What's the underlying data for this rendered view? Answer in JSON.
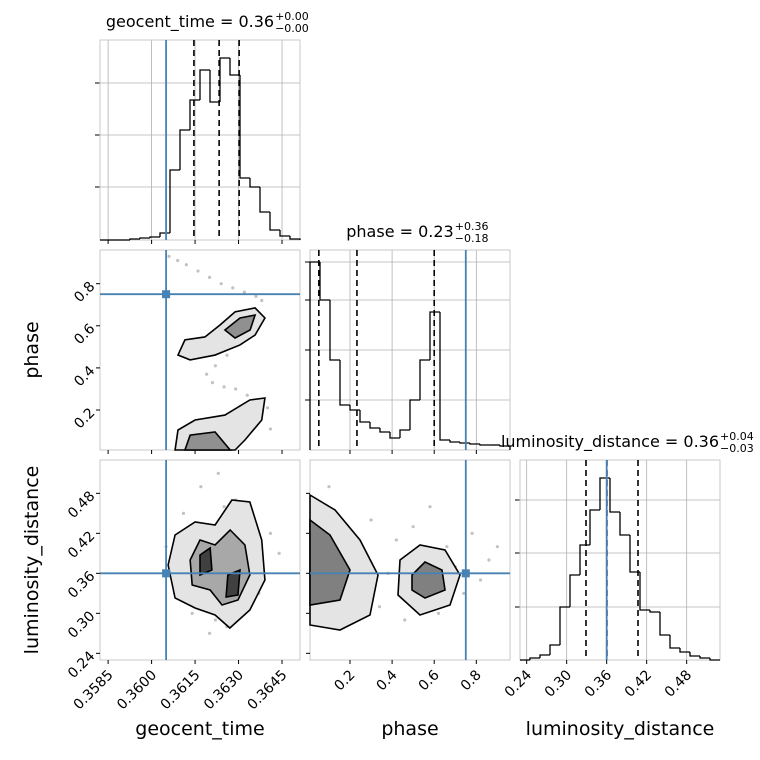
{
  "chart_data": {
    "type": "corner",
    "truth_color": "#4682b4",
    "line_color": "#000000",
    "grid": true,
    "parameters": [
      {
        "name": "geocent_time",
        "title": "geocent_time = 0.36",
        "title_upper": "+0.00",
        "title_lower": "−0.00",
        "lim": [
          0.35822,
          0.36512
        ],
        "ticks": [
          0.3585,
          {
            "value": 0.36,
            "label": "0.3600"
          },
          0.3615,
          {
            "value": 0.363,
            "label": "0.3630"
          },
          0.3645
        ],
        "truth": 0.3605,
        "quantiles": [
          0.36146,
          0.36233,
          0.36302
        ],
        "bins": [
          0.35822,
          0.358565,
          0.35891,
          0.359255,
          0.3596,
          0.359945,
          0.36029,
          0.360635,
          0.36098,
          0.361325,
          0.36167,
          0.362015,
          0.36236,
          0.362705,
          0.36305,
          0.363395,
          0.36374,
          0.364085,
          0.36443,
          0.364775,
          0.36512
        ],
        "counts": [
          0,
          0,
          0,
          1,
          2,
          3,
          7,
          70,
          110,
          140,
          170,
          138,
          182,
          165,
          62,
          53,
          28,
          10,
          4,
          1
        ],
        "count_lim": [
          0,
          200
        ],
        "count_ticks": [
          53,
          105,
          157
        ]
      },
      {
        "name": "phase",
        "title": "phase = 0.23",
        "title_upper": "+0.36",
        "title_lower": "−0.18",
        "lim": [
          0.01,
          0.96
        ],
        "ticks": [
          0.2,
          0.4,
          0.6,
          0.8
        ],
        "truth": 0.75,
        "quantiles": [
          0.052,
          0.233,
          0.6
        ],
        "bins": [
          0.01,
          0.0575,
          0.105,
          0.1525,
          0.2,
          0.2475,
          0.295,
          0.3425,
          0.39,
          0.4375,
          0.485,
          0.5325,
          0.58,
          0.6275,
          0.675,
          0.7225,
          0.77,
          0.8175,
          0.865,
          0.9125,
          0.96
        ],
        "counts": [
          188,
          150,
          90,
          45,
          40,
          28,
          22,
          18,
          12,
          20,
          50,
          90,
          138,
          10,
          8,
          7,
          6,
          5,
          5,
          4
        ],
        "count_lim": [
          0,
          200
        ],
        "count_ticks": [
          50,
          100,
          150,
          188
        ]
      },
      {
        "name": "luminosity_distance",
        "title": "luminosity_distance = 0.36",
        "title_upper": "+0.04",
        "title_lower": "−0.03",
        "lim": [
          0.23,
          0.53
        ],
        "ticks": [
          0.24,
          {
            "value": 0.3,
            "label": "0.30"
          },
          0.36,
          0.42,
          0.48
        ],
        "truth": 0.36,
        "quantiles": [
          0.329,
          0.3604,
          0.407
        ],
        "bins": [
          0.23,
          0.245,
          0.26,
          0.275,
          0.29,
          0.305,
          0.32,
          0.335,
          0.35,
          0.365,
          0.38,
          0.395,
          0.41,
          0.425,
          0.44,
          0.455,
          0.47,
          0.485,
          0.5,
          0.515,
          0.53
        ],
        "counts": [
          0,
          2,
          5,
          15,
          53,
          85,
          115,
          150,
          182,
          148,
          125,
          88,
          50,
          48,
          25,
          12,
          8,
          4,
          2,
          0
        ],
        "count_lim": [
          0,
          200
        ],
        "count_ticks": [
          53,
          107,
          160
        ]
      }
    ],
    "pairs": [
      {
        "points": {
          "x": [
            0.3606,
            0.3609,
            0.3612,
            0.3616,
            0.362,
            0.3624,
            0.3628,
            0.3632,
            0.3636,
            0.3638,
            0.3635,
            0.363,
            0.3626,
            0.3622,
            0.3619,
            0.3621,
            0.3625,
            0.3629,
            0.3633,
            0.3637,
            0.364,
            0.3616,
            0.3628,
            0.3641
          ],
          "y": [
            0.93,
            0.91,
            0.89,
            0.86,
            0.83,
            0.8,
            0.78,
            0.76,
            0.74,
            0.72,
            0.68,
            0.52,
            0.46,
            0.41,
            0.37,
            0.33,
            0.31,
            0.3,
            0.27,
            0.24,
            0.21,
            0.15,
            0.06,
            0.11
          ]
        },
        "contours": [
          {
            "fill": "#e4e4e4",
            "x": [
              0.36091,
              0.36115,
              0.36184,
              0.36236,
              0.36288,
              0.36357,
              0.36391,
              0.36357,
              0.36305,
              0.36219,
              0.36133
            ],
            "y": [
              0.461,
              0.533,
              0.547,
              0.604,
              0.666,
              0.685,
              0.637,
              0.556,
              0.509,
              0.461,
              0.438
            ]
          },
          {
            "fill": "#909090",
            "x": [
              0.36253,
              0.36305,
              0.36357,
              0.3634,
              0.36288
            ],
            "y": [
              0.58,
              0.637,
              0.651,
              0.58,
              0.542
            ]
          },
          {
            "fill": "#e4e4e4",
            "x": [
              0.36081,
              0.36091,
              0.3615,
              0.36253,
              0.36339,
              0.36391,
              0.3638,
              0.36322,
              0.36288
            ],
            "y": [
              0.01,
              0.105,
              0.1525,
              0.176,
              0.2475,
              0.257,
              0.1525,
              0.0575,
              0.01
            ]
          },
          {
            "fill": "#909090",
            "x": [
              0.36115,
              0.36133,
              0.36219,
              0.36271
            ],
            "y": [
              0.01,
              0.081,
              0.0955,
              0.01
            ]
          }
        ]
      },
      {
        "points": {
          "x": [
            0.3605,
            0.3608,
            0.3611,
            0.3614,
            0.3617,
            0.362,
            0.3623,
            0.3626,
            0.3629,
            0.3632,
            0.3635,
            0.3638,
            0.3641,
            0.3644,
            0.3613,
            0.3619,
            0.3625,
            0.3631,
            0.3637,
            0.3622,
            0.3628,
            0.3616,
            0.3634,
            0.361
          ],
          "y": [
            0.4,
            0.33,
            0.45,
            0.3,
            0.49,
            0.27,
            0.51,
            0.28,
            0.47,
            0.31,
            0.44,
            0.36,
            0.42,
            0.39,
            0.38,
            0.43,
            0.46,
            0.4,
            0.33,
            0.29,
            0.35,
            0.41,
            0.37,
            0.36
          ]
        },
        "contours": [
          {
            "fill": "#e4e4e4",
            "x": [
              0.36081,
              0.3615,
              0.36219,
              0.36277,
              0.36339,
              0.3638,
              0.36391,
              0.36339,
              0.3627,
              0.36219,
              0.3615,
              0.36081,
              0.36057
            ],
            "y": [
              0.4175,
              0.437,
              0.4325,
              0.47,
              0.467,
              0.41,
              0.35,
              0.305,
              0.278,
              0.2975,
              0.308,
              0.323,
              0.3725
            ]
          },
          {
            "fill": "#a8a8a8",
            "x": [
              0.36133,
              0.36167,
              0.36219,
              0.36271,
              0.36322,
              0.36339,
              0.36298,
              0.36243,
              0.36202,
              0.3614
            ],
            "y": [
              0.38,
              0.41,
              0.4025,
              0.425,
              0.4025,
              0.3575,
              0.32,
              0.3125,
              0.335,
              0.3425
            ]
          },
          {
            "fill": "#404040",
            "x": [
              0.36167,
              0.36202,
              0.36208,
              0.36167
            ],
            "y": [
              0.3875,
              0.398,
              0.365,
              0.3575
            ]
          },
          {
            "fill": "#404040",
            "x": [
              0.36263,
              0.36305,
              0.36298,
              0.36257
            ],
            "y": [
              0.3575,
              0.365,
              0.3275,
              0.3245
            ]
          }
        ]
      },
      {
        "points": {
          "x": [
            0.03,
            0.06,
            0.1,
            0.14,
            0.18,
            0.22,
            0.26,
            0.3,
            0.34,
            0.38,
            0.42,
            0.46,
            0.5,
            0.54,
            0.58,
            0.62,
            0.66,
            0.7,
            0.74,
            0.78,
            0.82,
            0.86,
            0.9,
            0.12
          ],
          "y": [
            0.45,
            0.3,
            0.49,
            0.28,
            0.42,
            0.33,
            0.39,
            0.44,
            0.31,
            0.36,
            0.41,
            0.29,
            0.43,
            0.34,
            0.46,
            0.3,
            0.4,
            0.37,
            0.33,
            0.42,
            0.35,
            0.38,
            0.4,
            0.37
          ]
        },
        "contours": [
          {
            "fill": "#e4e4e4",
            "x": [
              0.01,
              0.129,
              0.2475,
              0.333,
              0.295,
              0.1525,
              0.01
            ],
            "y": [
              0.4775,
              0.455,
              0.41,
              0.3575,
              0.2975,
              0.275,
              0.2825
            ]
          },
          {
            "fill": "#808080",
            "x": [
              0.01,
              0.105,
              0.2,
              0.1525,
              0.01
            ],
            "y": [
              0.44,
              0.4175,
              0.365,
              0.32,
              0.3125
            ]
          },
          {
            "fill": "#e4e4e4",
            "x": [
              0.4375,
              0.5325,
              0.6513,
              0.7225,
              0.675,
              0.5325,
              0.428
            ],
            "y": [
              0.38,
              0.4025,
              0.395,
              0.3575,
              0.3125,
              0.2975,
              0.3275
            ]
          },
          {
            "fill": "#808080",
            "x": [
              0.4945,
              0.5563,
              0.637,
              0.6513,
              0.5563,
              0.4945
            ],
            "y": [
              0.3575,
              0.377,
              0.365,
              0.335,
              0.323,
              0.335
            ]
          }
        ]
      }
    ]
  }
}
